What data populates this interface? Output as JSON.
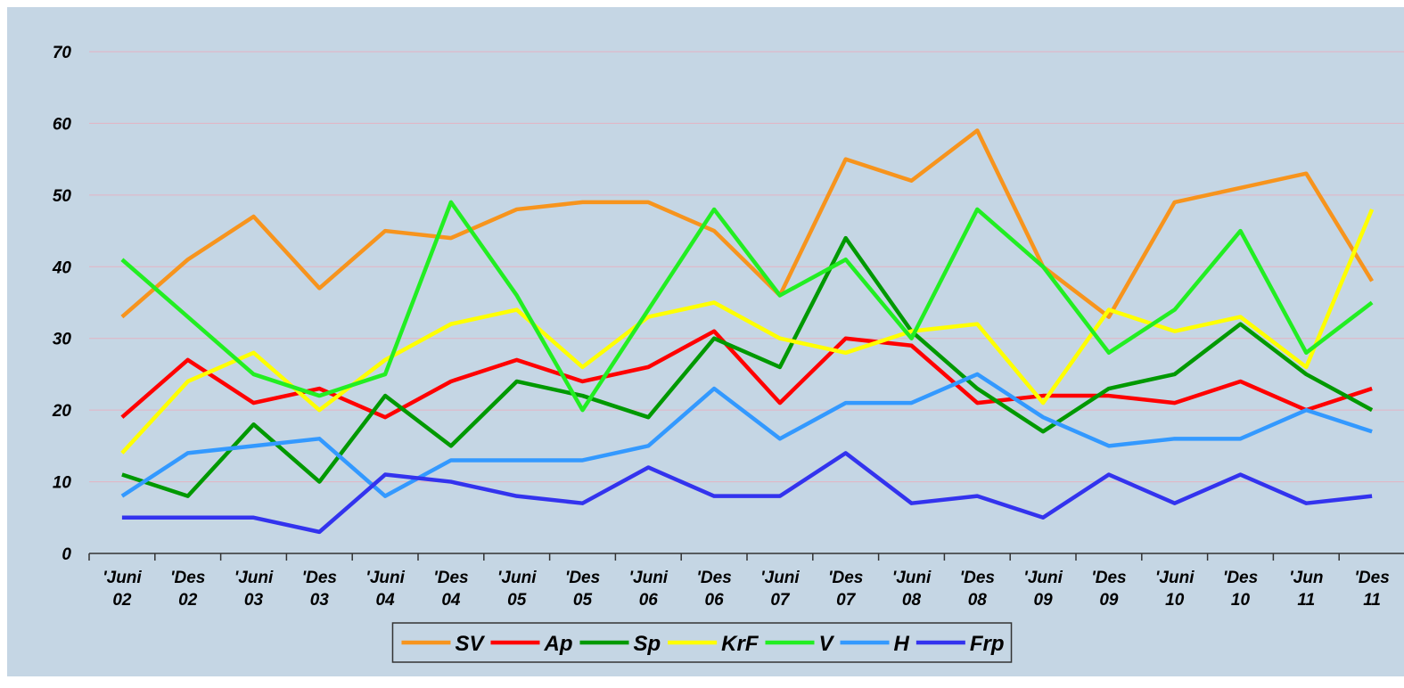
{
  "chart_data": {
    "type": "line",
    "categories": [
      "'Juni 02",
      "'Des 02",
      "'Juni 03",
      "'Des 03",
      "'Juni 04",
      "'Des 04",
      "'Juni 05",
      "'Des 05",
      "'Juni 06",
      "'Des 06",
      "'Juni 07",
      "'Des 07",
      "'Juni 08",
      "'Des 08",
      "'Juni 09",
      "'Des 09",
      "'Juni 10",
      "'Des 10",
      "'Jun 11",
      "'Des 11"
    ],
    "series": [
      {
        "name": "SV",
        "color": "#f7941d",
        "values": [
          33,
          41,
          47,
          37,
          45,
          44,
          48,
          49,
          49,
          45,
          36,
          55,
          52,
          59,
          40,
          33,
          49,
          51,
          53,
          38
        ]
      },
      {
        "name": "Ap",
        "color": "#ff0000",
        "values": [
          19,
          27,
          21,
          23,
          19,
          24,
          27,
          24,
          26,
          31,
          21,
          30,
          29,
          21,
          22,
          22,
          21,
          24,
          20,
          23
        ]
      },
      {
        "name": "Sp",
        "color": "#009900",
        "values": [
          11,
          8,
          18,
          10,
          22,
          15,
          24,
          22,
          19,
          30,
          26,
          44,
          31,
          23,
          17,
          23,
          25,
          32,
          25,
          20
        ]
      },
      {
        "name": "KrF",
        "color": "#ffff00",
        "values": [
          14,
          24,
          28,
          20,
          27,
          32,
          34,
          26,
          33,
          35,
          30,
          28,
          31,
          32,
          21,
          34,
          31,
          33,
          26,
          48
        ]
      },
      {
        "name": "V",
        "color": "#22ee22",
        "values": [
          41,
          33,
          25,
          22,
          25,
          49,
          36,
          20,
          34,
          48,
          36,
          41,
          30,
          48,
          40,
          28,
          34,
          45,
          28,
          35
        ]
      },
      {
        "name": "H",
        "color": "#3399ff",
        "values": [
          8,
          14,
          15,
          16,
          8,
          13,
          13,
          13,
          15,
          23,
          16,
          21,
          21,
          25,
          19,
          15,
          16,
          16,
          20,
          17
        ]
      },
      {
        "name": "Frp",
        "color": "#3333ee",
        "values": [
          5,
          5,
          5,
          3,
          11,
          10,
          8,
          7,
          12,
          8,
          8,
          14,
          7,
          8,
          5,
          11,
          7,
          11,
          7,
          8
        ]
      }
    ],
    "ylim": [
      0,
      70
    ],
    "yticks": [
      0,
      10,
      20,
      30,
      40,
      50,
      60,
      70
    ],
    "grid": true,
    "legend": "bottom"
  }
}
